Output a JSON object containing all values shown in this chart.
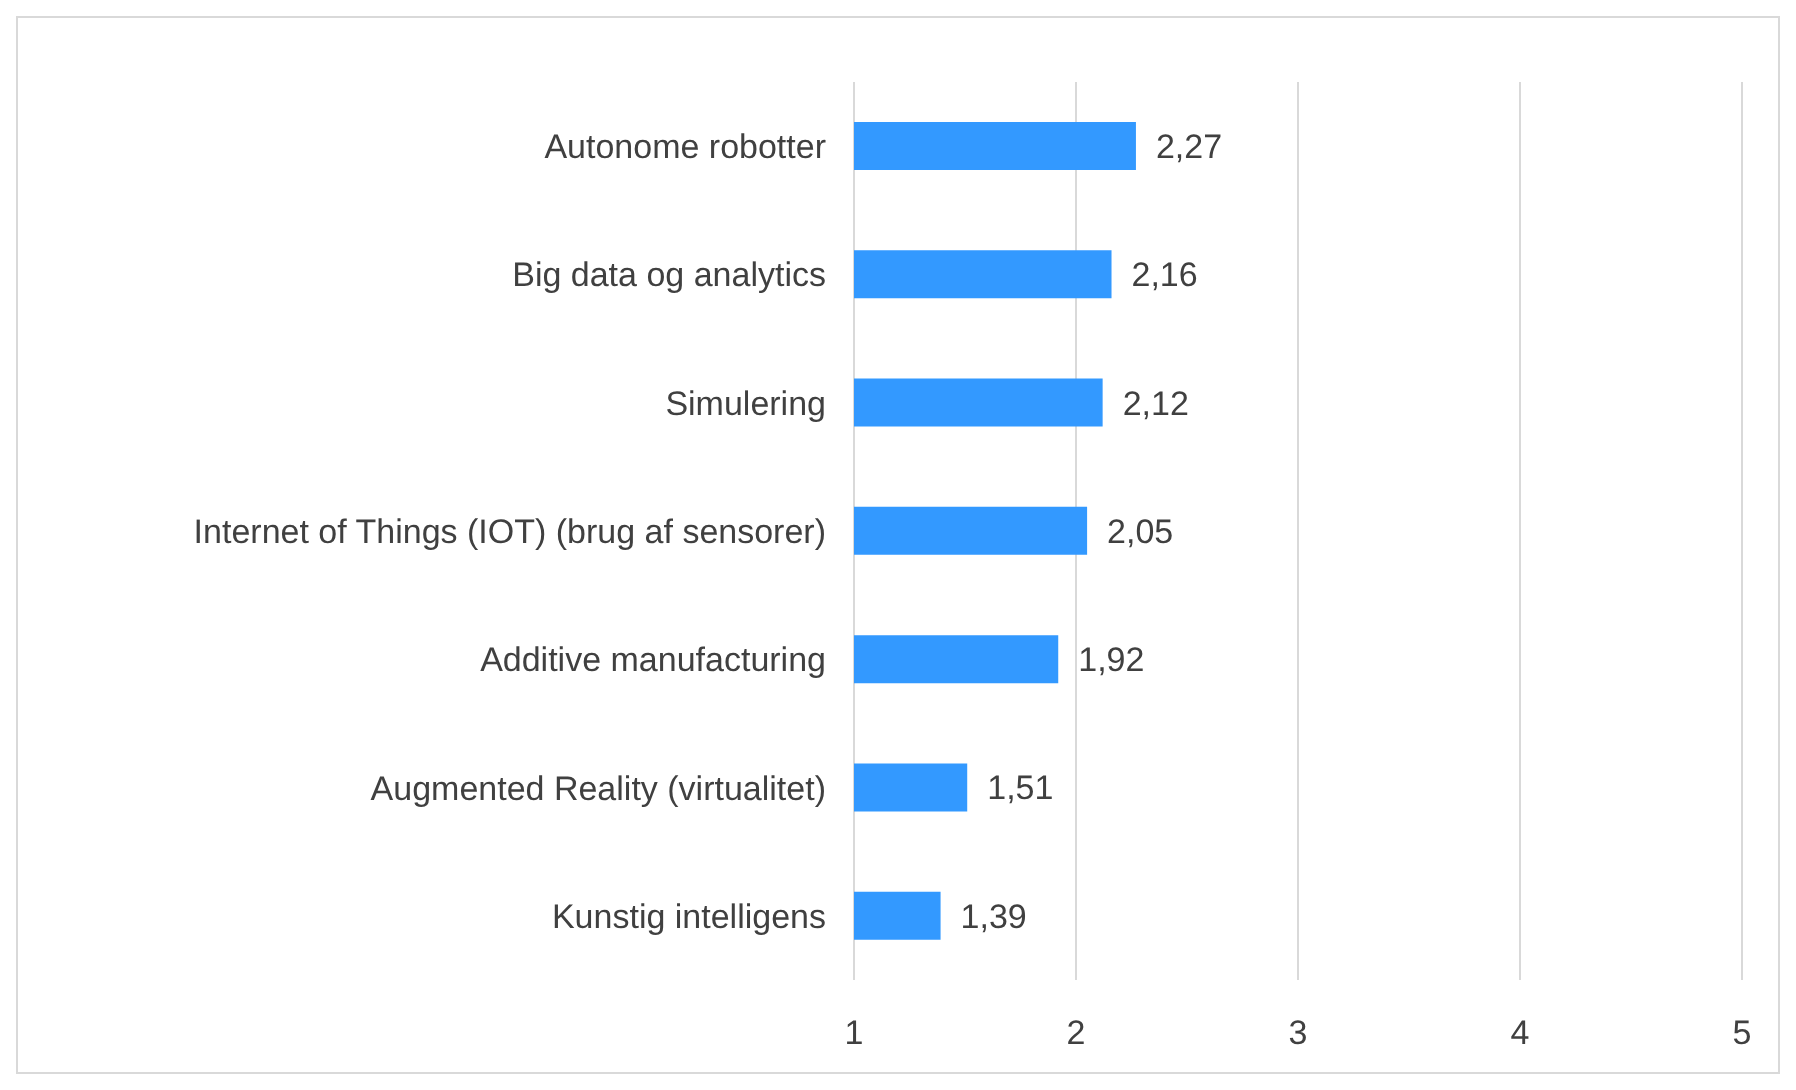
{
  "chart_data": {
    "type": "bar",
    "orientation": "horizontal",
    "categories": [
      "Autonome robotter",
      "Big data og analytics",
      "Simulering",
      "Internet of Things (IOT) (brug af sensorer)",
      "Additive manufacturing",
      "Augmented Reality (virtualitet)",
      "Kunstig intelligens"
    ],
    "values": [
      2.27,
      2.16,
      2.12,
      2.05,
      1.92,
      1.51,
      1.39
    ],
    "value_labels": [
      "2,27",
      "2,16",
      "2,12",
      "2,05",
      "1,92",
      "1,51",
      "1,39"
    ],
    "color": "#3399ff",
    "xlim": [
      1,
      5
    ],
    "xticks": [
      1,
      2,
      3,
      4,
      5
    ],
    "grid": "x",
    "legend": false
  }
}
